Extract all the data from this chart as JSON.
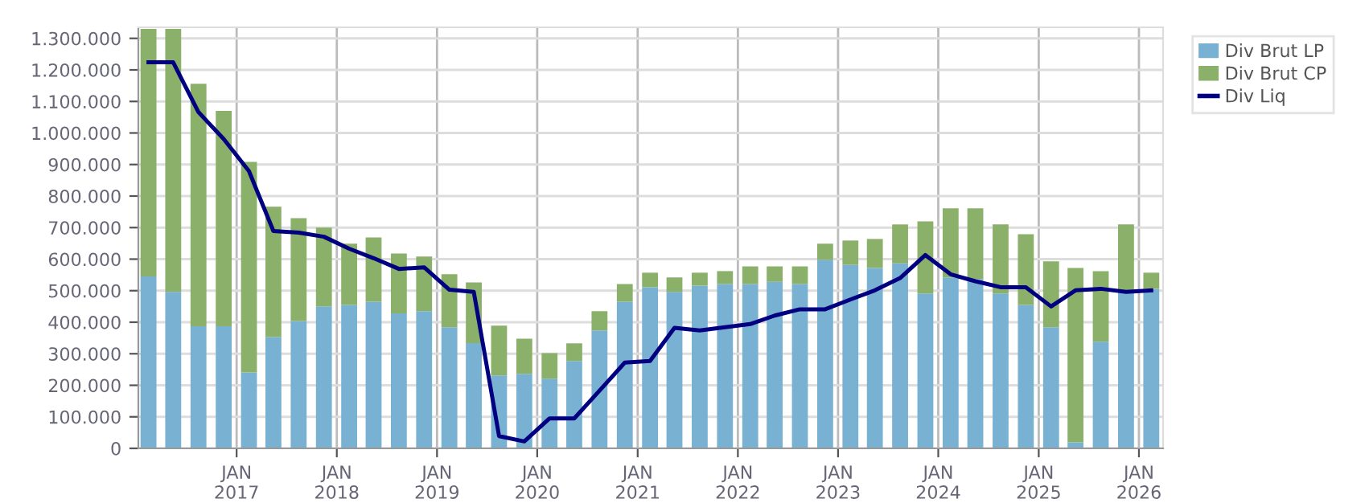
{
  "chart_data": {
    "type": "bar",
    "stacked": true,
    "x": [
      "2016-02-15",
      "2016-05-15",
      "2016-08-15",
      "2016-11-15",
      "2017-02-15",
      "2017-05-15",
      "2017-08-15",
      "2017-11-15",
      "2018-02-15",
      "2018-05-15",
      "2018-08-15",
      "2018-11-15",
      "2019-02-15",
      "2019-05-15",
      "2019-08-15",
      "2019-11-15",
      "2020-02-15",
      "2020-05-15",
      "2020-08-15",
      "2020-11-15",
      "2021-02-15",
      "2021-05-15",
      "2021-08-15",
      "2021-11-15",
      "2022-02-15",
      "2022-05-15",
      "2022-08-15",
      "2022-11-15",
      "2023-02-15",
      "2023-05-15",
      "2023-08-15",
      "2023-11-15",
      "2024-02-15",
      "2024-05-15",
      "2024-08-15",
      "2024-11-15",
      "2025-02-15",
      "2025-05-15",
      "2025-08-15",
      "2025-11-15",
      "2026-02-15"
    ],
    "series": [
      {
        "name": "Div Brut LP",
        "color": "#78b1d2",
        "values": [
          545000,
          496000,
          387000,
          387000,
          241000,
          353000,
          404000,
          450000,
          455000,
          465000,
          428000,
          435000,
          384000,
          334000,
          231000,
          236000,
          221000,
          277000,
          374000,
          465000,
          511000,
          496000,
          516000,
          521000,
          521000,
          528000,
          521000,
          598000,
          582000,
          572000,
          587000,
          491000,
          542000,
          537000,
          491000,
          455000,
          384000,
          19000,
          338000,
          501000,
          506000
        ]
      },
      {
        "name": "Div Brut CP",
        "color": "#8ab06a",
        "values": [
          785000,
          834000,
          769000,
          683000,
          667000,
          413000,
          326000,
          250000,
          194000,
          204000,
          190000,
          173000,
          168000,
          192000,
          158000,
          112000,
          81000,
          56000,
          61000,
          56000,
          46000,
          46000,
          41000,
          41000,
          56000,
          49000,
          56000,
          51000,
          77000,
          92000,
          123000,
          229000,
          219000,
          224000,
          219000,
          224000,
          209000,
          553000,
          224000,
          209000,
          51000
        ]
      },
      {
        "name": "Div Liq",
        "type": "line",
        "color": "#000080",
        "line_style": "solid",
        "values": [
          1224000,
          1224000,
          1066000,
          981000,
          879000,
          689000,
          684000,
          671000,
          633000,
          603000,
          569000,
          574000,
          503000,
          496000,
          39000,
          22000,
          95000,
          95000,
          183000,
          272000,
          277000,
          382000,
          374000,
          384000,
          394000,
          421000,
          441000,
          441000,
          472000,
          501000,
          540000,
          613000,
          552000,
          530000,
          511000,
          511000,
          450000,
          501000,
          506000,
          496000,
          501000
        ]
      }
    ],
    "xlim": [
      "2016-01-09",
      "2026-03-30"
    ],
    "xticks": [
      {
        "value": "2017-01-01",
        "label": "JAN\n2017"
      },
      {
        "value": "2018-01-01",
        "label": "JAN\n2018"
      },
      {
        "value": "2019-01-01",
        "label": "JAN\n2019"
      },
      {
        "value": "2020-01-01",
        "label": "JAN\n2020"
      },
      {
        "value": "2021-01-01",
        "label": "JAN\n2021"
      },
      {
        "value": "2022-01-01",
        "label": "JAN\n2022"
      },
      {
        "value": "2023-01-01",
        "label": "JAN\n2023"
      },
      {
        "value": "2024-01-01",
        "label": "JAN\n2024"
      },
      {
        "value": "2025-01-01",
        "label": "JAN\n2025"
      },
      {
        "value": "2026-01-01",
        "label": "JAN\n2026"
      }
    ],
    "ylim": [
      0,
      1335000
    ],
    "yticks": [
      {
        "value": 0,
        "label": "0"
      },
      {
        "value": 100000,
        "label": "100.000"
      },
      {
        "value": 200000,
        "label": "200.000"
      },
      {
        "value": 300000,
        "label": "300.000"
      },
      {
        "value": 400000,
        "label": "400.000"
      },
      {
        "value": 500000,
        "label": "500.000"
      },
      {
        "value": 600000,
        "label": "600.000"
      },
      {
        "value": 700000,
        "label": "700.000"
      },
      {
        "value": 800000,
        "label": "800.000"
      },
      {
        "value": 900000,
        "label": "900.000"
      },
      {
        "value": 1000000,
        "label": "1.000.000"
      },
      {
        "value": 1100000,
        "label": "1.100.000"
      },
      {
        "value": 1200000,
        "label": "1.200.000"
      },
      {
        "value": 1300000,
        "label": "1.300.000"
      }
    ],
    "grid": true,
    "legend": "top right"
  }
}
